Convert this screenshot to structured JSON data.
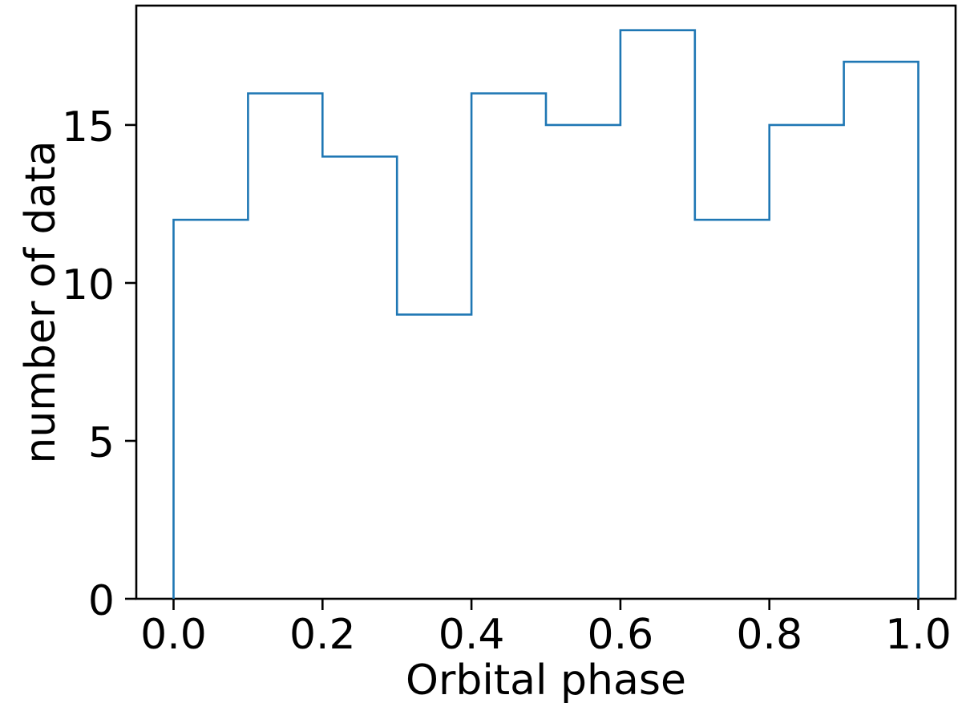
{
  "figure": {
    "background_color": "#ffffff"
  },
  "chart_data": {
    "type": "bar",
    "subtype": "step-histogram",
    "title": "",
    "xlabel": "Orbital phase",
    "ylabel": "number of data",
    "bin_edges": [
      0.0,
      0.1,
      0.2,
      0.3,
      0.4,
      0.5,
      0.6,
      0.7,
      0.8,
      0.9,
      1.0
    ],
    "counts": [
      12,
      16,
      14,
      9,
      16,
      15,
      18,
      12,
      15,
      17
    ],
    "x_ticks": {
      "values": [
        0.0,
        0.2,
        0.4,
        0.6,
        0.8,
        1.0
      ],
      "labels": [
        "0.0",
        "0.2",
        "0.4",
        "0.6",
        "0.8",
        "1.0"
      ]
    },
    "y_ticks": {
      "values": [
        0,
        5,
        10,
        15
      ],
      "labels": [
        "0",
        "5",
        "10",
        "15"
      ]
    },
    "xlim": [
      -0.05,
      1.05
    ],
    "ylim": [
      0,
      18.78
    ],
    "grid": false,
    "legend": null,
    "line_color": "#1f77b4",
    "axis_color": "#000000",
    "text_color": "#000000"
  }
}
